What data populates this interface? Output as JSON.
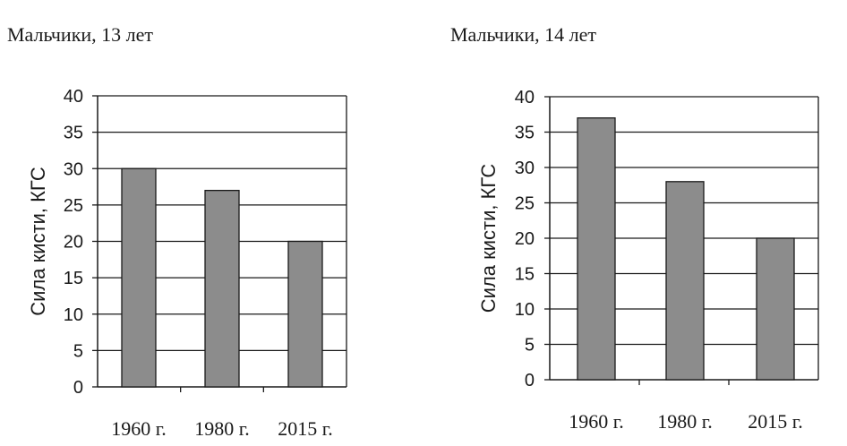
{
  "chart_data": [
    {
      "type": "bar",
      "title": "Мальчики, 13 лет",
      "ylabel": "Сила кисти, КГС",
      "xlabel": "",
      "categories": [
        "1960 г.",
        "1980 г.",
        "2015 г."
      ],
      "values": [
        30,
        27,
        20
      ],
      "ylim": [
        0,
        40
      ],
      "yticks": [
        0,
        5,
        10,
        15,
        20,
        25,
        30,
        35,
        40
      ],
      "grid": true,
      "bar_color": "#8c8c8c"
    },
    {
      "type": "bar",
      "title": "Мальчики, 14 лет",
      "ylabel": "Сила кисти, КГС",
      "xlabel": "",
      "categories": [
        "1960 г.",
        "1980 г.",
        "2015 г."
      ],
      "values": [
        37,
        28,
        20
      ],
      "ylim": [
        0,
        40
      ],
      "yticks": [
        0,
        5,
        10,
        15,
        20,
        25,
        30,
        35,
        40
      ],
      "grid": true,
      "bar_color": "#8c8c8c"
    }
  ]
}
